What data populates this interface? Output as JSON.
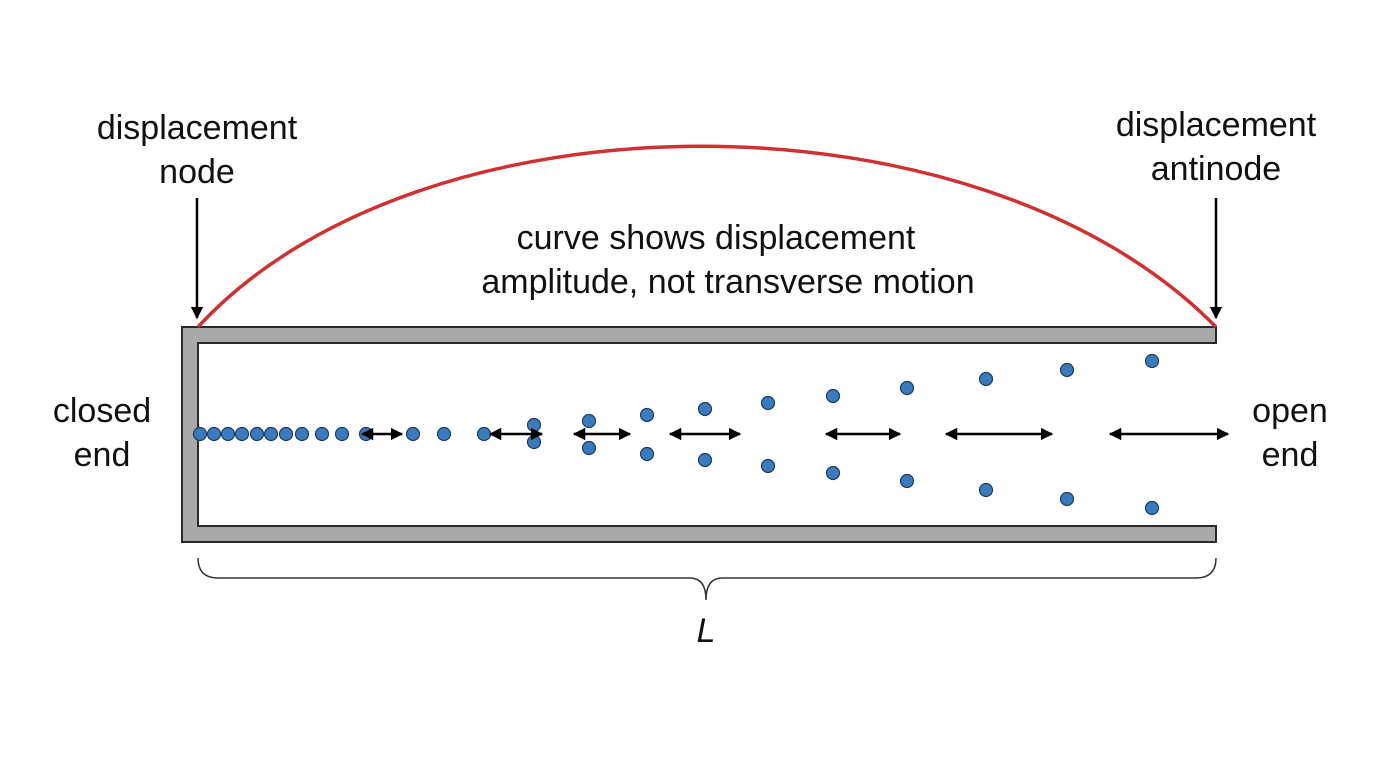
{
  "node_label": [
    "displacement",
    "node"
  ],
  "antinode_label": [
    "displacement",
    "antinode"
  ],
  "curve_note": [
    "curve shows displacement",
    "amplitude, not transverse motion"
  ],
  "closed_end": [
    "closed",
    "end"
  ],
  "open_end": [
    "open",
    "end"
  ],
  "length_label": "L"
}
